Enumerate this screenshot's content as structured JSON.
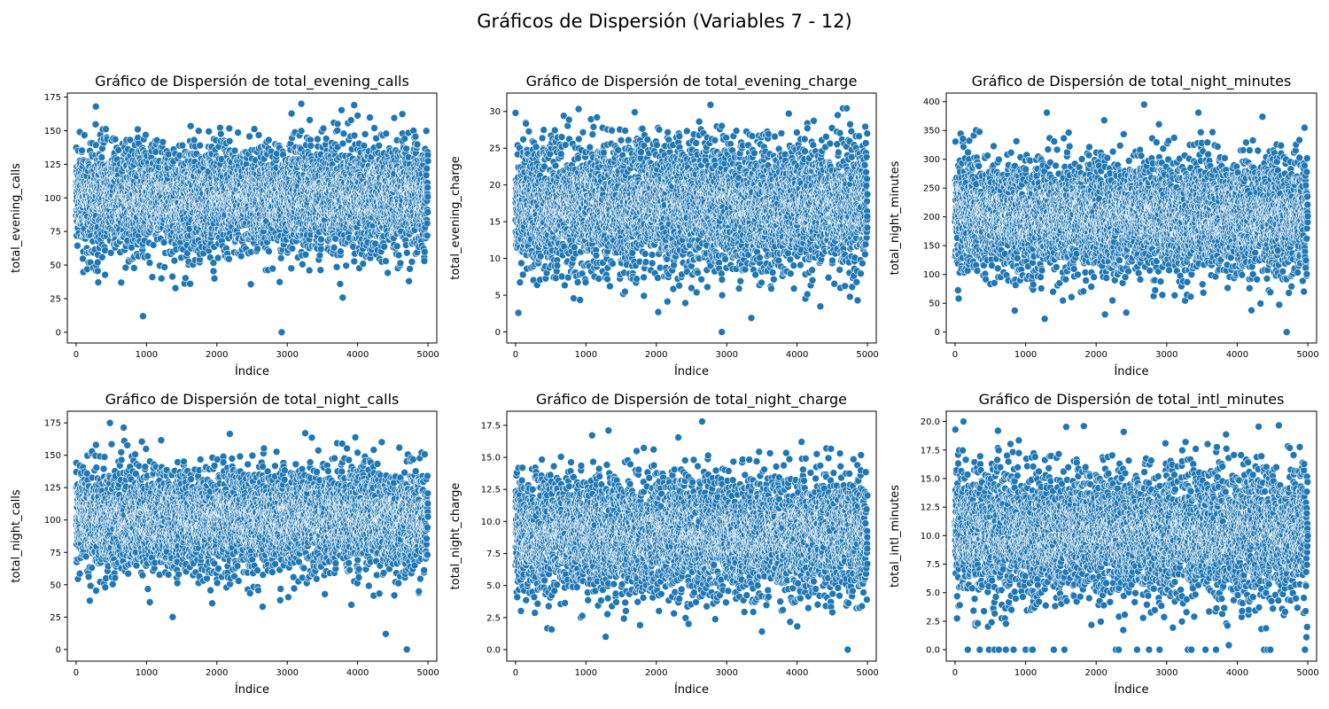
{
  "figure": {
    "suptitle": "Gráficos de Dispersión (Variables 7 - 12)"
  },
  "colors": {
    "point_fill": "#1f77b4",
    "point_edge": "#ffffff",
    "axis": "#000000",
    "background": "#ffffff"
  },
  "chart_data": [
    {
      "type": "scatter",
      "title": "Gráfico de Dispersión de total_evening_calls",
      "xlabel": "Índice",
      "ylabel": "total_evening_calls",
      "xlim": [
        -125,
        5125
      ],
      "ylim": [
        -8,
        178
      ],
      "xticks": [
        0,
        1000,
        2000,
        3000,
        4000,
        5000
      ],
      "xtick_labels": [
        "0",
        "1000",
        "2000",
        "3000",
        "4000",
        "5000"
      ],
      "yticks": [
        0,
        25,
        50,
        75,
        100,
        125,
        150,
        175
      ],
      "ytick_labels": [
        "0",
        "25",
        "50",
        "75",
        "100",
        "125",
        "150",
        "175"
      ],
      "n_points": 5000,
      "distribution": {
        "mean": 100,
        "sd": 20,
        "min": 0,
        "max": 170
      },
      "notable_points": [
        {
          "x": 950,
          "y": 12
        },
        {
          "x": 2920,
          "y": 0
        },
        {
          "x": 3200,
          "y": 170
        },
        {
          "x": 3950,
          "y": 169
        },
        {
          "x": 280,
          "y": 168
        },
        {
          "x": 1620,
          "y": 36
        },
        {
          "x": 640,
          "y": 37
        },
        {
          "x": 4730,
          "y": 38
        }
      ]
    },
    {
      "type": "scatter",
      "title": "Gráfico de Dispersión de total_evening_charge",
      "xlabel": "Índice",
      "ylabel": "total_evening_charge",
      "xlim": [
        -125,
        5125
      ],
      "ylim": [
        -1.5,
        32.5
      ],
      "xticks": [
        0,
        1000,
        2000,
        3000,
        4000,
        5000
      ],
      "xtick_labels": [
        "0",
        "1000",
        "2000",
        "3000",
        "4000",
        "5000"
      ],
      "yticks": [
        0,
        5,
        10,
        15,
        20,
        25,
        30
      ],
      "ytick_labels": [
        "0",
        "5",
        "10",
        "15",
        "20",
        "25",
        "30"
      ],
      "n_points": 5000,
      "distribution": {
        "mean": 17,
        "sd": 4.3,
        "min": 0,
        "max": 31
      },
      "notable_points": [
        {
          "x": 2930,
          "y": 0
        },
        {
          "x": 3350,
          "y": 1.9
        },
        {
          "x": 40,
          "y": 2.6
        },
        {
          "x": 2770,
          "y": 30.9
        },
        {
          "x": 0,
          "y": 29.8
        }
      ]
    },
    {
      "type": "scatter",
      "title": "Gráfico de Dispersión de total_night_minutes",
      "xlabel": "Índice",
      "ylabel": "total_night_minutes",
      "xlim": [
        -125,
        5125
      ],
      "ylim": [
        -19,
        415
      ],
      "xticks": [
        0,
        1000,
        2000,
        3000,
        4000,
        5000
      ],
      "xtick_labels": [
        "0",
        "1000",
        "2000",
        "3000",
        "4000",
        "5000"
      ],
      "yticks": [
        0,
        50,
        100,
        150,
        200,
        250,
        300,
        350,
        400
      ],
      "ytick_labels": [
        "0",
        "50",
        "100",
        "150",
        "200",
        "250",
        "300",
        "350",
        "400"
      ],
      "n_points": 5000,
      "distribution": {
        "mean": 200,
        "sd": 50,
        "min": 0,
        "max": 395
      },
      "notable_points": [
        {
          "x": 4700,
          "y": 0
        },
        {
          "x": 1270,
          "y": 23
        },
        {
          "x": 2680,
          "y": 395
        },
        {
          "x": 1300,
          "y": 381
        },
        {
          "x": 3450,
          "y": 381
        }
      ]
    },
    {
      "type": "scatter",
      "title": "Gráfico de Dispersión de total_night_calls",
      "xlabel": "Índice",
      "ylabel": "total_night_calls",
      "xlim": [
        -125,
        5125
      ],
      "ylim": [
        -9,
        184
      ],
      "xticks": [
        0,
        1000,
        2000,
        3000,
        4000,
        5000
      ],
      "xtick_labels": [
        "0",
        "1000",
        "2000",
        "3000",
        "4000",
        "5000"
      ],
      "yticks": [
        0,
        25,
        50,
        75,
        100,
        125,
        150,
        175
      ],
      "ytick_labels": [
        "0",
        "25",
        "50",
        "75",
        "100",
        "125",
        "150",
        "175"
      ],
      "n_points": 5000,
      "distribution": {
        "mean": 100,
        "sd": 20,
        "min": 0,
        "max": 175
      },
      "notable_points": [
        {
          "x": 4700,
          "y": 0
        },
        {
          "x": 4400,
          "y": 12
        },
        {
          "x": 480,
          "y": 175
        },
        {
          "x": 2650,
          "y": 33
        },
        {
          "x": 2900,
          "y": 38
        }
      ]
    },
    {
      "type": "scatter",
      "title": "Gráfico de Dispersión de total_night_charge",
      "xlabel": "Índice",
      "ylabel": "total_night_charge",
      "xlim": [
        -125,
        5125
      ],
      "ylim": [
        -0.9,
        18.6
      ],
      "xticks": [
        0,
        1000,
        2000,
        3000,
        4000,
        5000
      ],
      "xtick_labels": [
        "0",
        "1000",
        "2000",
        "3000",
        "4000",
        "5000"
      ],
      "yticks": [
        0.0,
        2.5,
        5.0,
        7.5,
        10.0,
        12.5,
        15.0,
        17.5
      ],
      "ytick_labels": [
        "0.0",
        "2.5",
        "5.0",
        "7.5",
        "10.0",
        "12.5",
        "15.0",
        "17.5"
      ],
      "n_points": 5000,
      "distribution": {
        "mean": 9,
        "sd": 2.3,
        "min": 0,
        "max": 17.8
      },
      "notable_points": [
        {
          "x": 4720,
          "y": 0
        },
        {
          "x": 1280,
          "y": 1.0
        },
        {
          "x": 2650,
          "y": 17.8
        },
        {
          "x": 1320,
          "y": 17.1
        }
      ]
    },
    {
      "type": "scatter",
      "title": "Gráfico de Dispersión de total_intl_minutes",
      "xlabel": "Índice",
      "ylabel": "total_intl_minutes",
      "xlim": [
        -125,
        5125
      ],
      "ylim": [
        -1.0,
        20.9
      ],
      "xticks": [
        0,
        1000,
        2000,
        3000,
        4000,
        5000
      ],
      "xtick_labels": [
        "0",
        "1000",
        "2000",
        "3000",
        "4000",
        "5000"
      ],
      "yticks": [
        0.0,
        2.5,
        5.0,
        7.5,
        10.0,
        12.5,
        15.0,
        17.5,
        20.0
      ],
      "ytick_labels": [
        "0.0",
        "2.5",
        "5.0",
        "7.5",
        "10.0",
        "12.5",
        "15.0",
        "17.5",
        "20.0"
      ],
      "n_points": 5000,
      "distribution": {
        "mean": 10.2,
        "sd": 2.8,
        "min": 0,
        "max": 20
      },
      "zero_points_x": [
        180,
        350,
        480,
        560,
        620,
        720,
        830,
        1000,
        1080,
        1100,
        1400,
        1550,
        2280,
        2320,
        2580,
        2750,
        2900,
        3300,
        3350,
        3550,
        3700,
        4380,
        4430,
        4470,
        4960
      ],
      "notable_points": [
        {
          "x": 120,
          "y": 20
        },
        {
          "x": 4980,
          "y": 1.1
        },
        {
          "x": 4990,
          "y": 2.0
        },
        {
          "x": 3880,
          "y": 0.4
        }
      ]
    }
  ]
}
